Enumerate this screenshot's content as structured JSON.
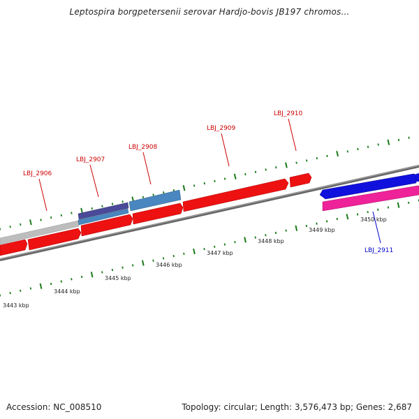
{
  "title": "Leptospira borgpetersenii serovar Hardjo-bovis JB197 chromos...",
  "footer": {
    "accession": "Accession: NC_008510",
    "summary": "Topology: circular; Length: 3,576,473 bp; Genes: 2,687"
  },
  "colors": {
    "backbone": "#777777",
    "tick": "#1a7a1a",
    "cds_red": "#ee1111",
    "navy": "#4a4a99",
    "steel": "#4a86bf",
    "gray_feature": "#bdbdbd",
    "blue": "#1111dd",
    "magenta": "#ee2299",
    "label_red": "#cc0000",
    "label_blue": "#0000cc"
  },
  "kbp_labels": [
    "3443 kbp",
    "3444 kbp",
    "3445 kbp",
    "3446 kbp",
    "3447 kbp",
    "3448 kbp",
    "3449 kbp",
    "3450 kbp"
  ],
  "gene_labels": [
    {
      "text": "LBJ_2906",
      "color": "red"
    },
    {
      "text": "LBJ_2907",
      "color": "red"
    },
    {
      "text": "LBJ_2908",
      "color": "red"
    },
    {
      "text": "LBJ_2909",
      "color": "red"
    },
    {
      "text": "LBJ_2910",
      "color": "red"
    },
    {
      "text": "LBJ_2911",
      "color": "blue"
    }
  ]
}
